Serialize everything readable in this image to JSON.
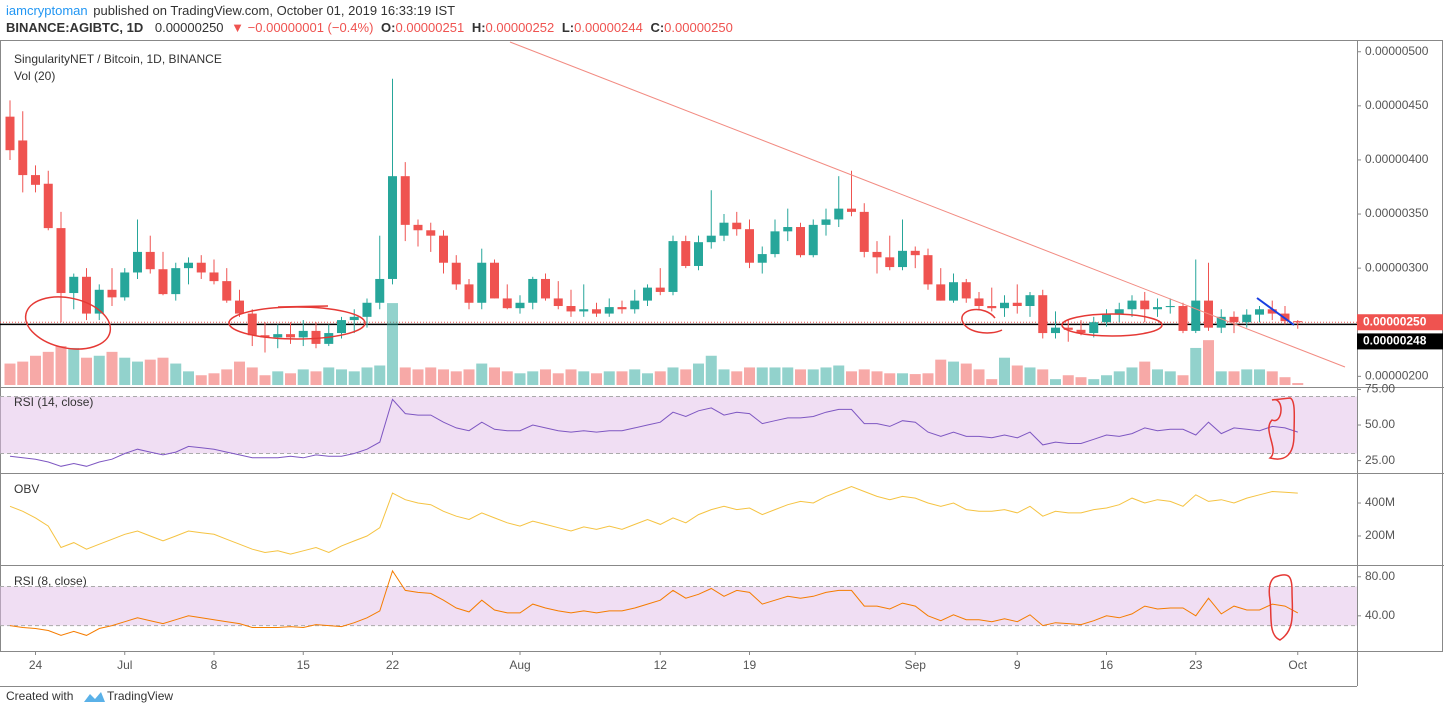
{
  "header": {
    "author": "iamcryptoman",
    "published": "published on TradingView.com, October 01, 2019 16:33:19 IST",
    "symbol": "BINANCE:AGIBTC, 1D",
    "price": "0.00000250",
    "change": "▼ −0.00000001 (−0.4%)",
    "o_label": "O:",
    "o": "0.00000251",
    "h_label": "H:",
    "h": "0.00000252",
    "l_label": "L:",
    "l": "0.00000244",
    "c_label": "C:",
    "c": "0.00000250"
  },
  "footer": {
    "created": "Created with",
    "brand": "TradingView"
  },
  "chart_data": [
    {
      "type": "candlestick",
      "title": "SingularityNET / Bitcoin, 1D, BINANCE",
      "up_color": "#26a69a",
      "down_color": "#ef5350",
      "categories": [
        null,
        null,
        "24",
        null,
        null,
        null,
        null,
        null,
        null,
        "Jul",
        null,
        null,
        null,
        null,
        null,
        null,
        "8",
        null,
        null,
        null,
        null,
        null,
        null,
        "15",
        null,
        null,
        null,
        null,
        null,
        null,
        "22",
        null,
        null,
        null,
        null,
        null,
        null,
        null,
        null,
        null,
        "Aug",
        null,
        null,
        null,
        null,
        null,
        null,
        null,
        null,
        null,
        null,
        "12",
        null,
        null,
        null,
        null,
        null,
        null,
        "19",
        null,
        null,
        null,
        null,
        null,
        null,
        null,
        null,
        null,
        null,
        null,
        null,
        "Sep",
        null,
        null,
        null,
        null,
        null,
        null,
        null,
        "9",
        null,
        null,
        null,
        null,
        null,
        null,
        "16",
        null,
        null,
        null,
        null,
        null,
        null,
        "23",
        null,
        null,
        null,
        null,
        null,
        null,
        null,
        "Oct"
      ],
      "open": [
        4.4e-06,
        4.18e-06,
        3.86e-06,
        3.78e-06,
        3.37e-06,
        2.77e-06,
        2.92e-06,
        2.58e-06,
        2.8e-06,
        2.73e-06,
        2.96e-06,
        3.15e-06,
        2.99e-06,
        2.76e-06,
        3e-06,
        3.05e-06,
        2.96e-06,
        2.88e-06,
        2.7e-06,
        2.58e-06,
        2.38e-06,
        2.36e-06,
        2.39e-06,
        2.36e-06,
        2.42e-06,
        2.3e-06,
        2.4e-06,
        2.52e-06,
        2.55e-06,
        2.68e-06,
        2.9e-06,
        3.85e-06,
        3.4e-06,
        3.35e-06,
        3.3e-06,
        3.05e-06,
        2.85e-06,
        2.68e-06,
        3.05e-06,
        2.72e-06,
        2.63e-06,
        2.68e-06,
        2.9e-06,
        2.72e-06,
        2.65e-06,
        2.6e-06,
        2.62e-06,
        2.58e-06,
        2.64e-06,
        2.62e-06,
        2.7e-06,
        2.82e-06,
        2.78e-06,
        3.25e-06,
        3.02e-06,
        3.24e-06,
        3.3e-06,
        3.42e-06,
        3.36e-06,
        3.05e-06,
        3.13e-06,
        3.34e-06,
        3.38e-06,
        3.12e-06,
        3.4e-06,
        3.45e-06,
        3.55e-06,
        3.52e-06,
        3.15e-06,
        3.1e-06,
        3.01e-06,
        3.16e-06,
        3.12e-06,
        2.85e-06,
        2.7e-06,
        2.87e-06,
        2.72e-06,
        2.65e-06,
        2.63e-06,
        2.68e-06,
        2.65e-06,
        2.75e-06,
        2.4e-06,
        2.45e-06,
        2.43e-06,
        2.4e-06,
        2.5e-06,
        2.58e-06,
        2.62e-06,
        2.7e-06,
        2.62e-06,
        2.64e-06,
        2.65e-06,
        2.42e-06,
        2.7e-06,
        2.45e-06,
        2.55e-06,
        2.5e-06,
        2.57e-06,
        2.62e-06,
        2.58e-06,
        2.51e-06
      ],
      "high": [
        4.55e-06,
        4.45e-06,
        3.95e-06,
        3.9e-06,
        3.52e-06,
        2.95e-06,
        3e-06,
        2.85e-06,
        3e-06,
        3e-06,
        3.45e-06,
        3.3e-06,
        3.15e-06,
        3.05e-06,
        3.1e-06,
        3.12e-06,
        3.08e-06,
        3e-06,
        2.8e-06,
        2.62e-06,
        2.5e-06,
        2.48e-06,
        2.5e-06,
        2.52e-06,
        2.5e-06,
        2.48e-06,
        2.55e-06,
        2.62e-06,
        2.72e-06,
        3.3e-06,
        4.75e-06,
        3.98e-06,
        3.45e-06,
        3.42e-06,
        3.35e-06,
        3.12e-06,
        2.9e-06,
        3.18e-06,
        3.08e-06,
        2.85e-06,
        2.75e-06,
        2.92e-06,
        2.95e-06,
        2.88e-06,
        2.8e-06,
        2.85e-06,
        2.68e-06,
        2.72e-06,
        2.7e-06,
        2.8e-06,
        2.85e-06,
        3e-06,
        3.3e-06,
        3.3e-06,
        3.3e-06,
        3.72e-06,
        3.5e-06,
        3.52e-06,
        3.45e-06,
        3.2e-06,
        3.45e-06,
        3.55e-06,
        3.42e-06,
        3.45e-06,
        3.55e-06,
        3.85e-06,
        3.9e-06,
        3.6e-06,
        3.25e-06,
        3.3e-06,
        3.45e-06,
        3.2e-06,
        3.18e-06,
        3e-06,
        2.95e-06,
        2.9e-06,
        2.78e-06,
        2.82e-06,
        2.75e-06,
        2.85e-06,
        2.78e-06,
        2.8e-06,
        2.6e-06,
        2.52e-06,
        2.52e-06,
        2.55e-06,
        2.62e-06,
        2.68e-06,
        2.75e-06,
        2.78e-06,
        2.72e-06,
        2.72e-06,
        2.68e-06,
        3.08e-06,
        3.05e-06,
        2.62e-06,
        2.6e-06,
        2.62e-06,
        2.65e-06,
        2.7e-06,
        2.65e-06,
        2.52e-06
      ],
      "low": [
        4e-06,
        3.7e-06,
        3.7e-06,
        3.35e-06,
        2.5e-06,
        2.62e-06,
        2.52e-06,
        2.52e-06,
        2.65e-06,
        2.7e-06,
        2.9e-06,
        2.95e-06,
        2.75e-06,
        2.7e-06,
        2.85e-06,
        2.9e-06,
        2.85e-06,
        2.68e-06,
        2.55e-06,
        2.28e-06,
        2.22e-06,
        2.26e-06,
        2.3e-06,
        2.28e-06,
        2.26e-06,
        2.28e-06,
        2.35e-06,
        2.4e-06,
        2.45e-06,
        2.62e-06,
        2.85e-06,
        3.25e-06,
        3.2e-06,
        3.15e-06,
        2.95e-06,
        2.8e-06,
        2.62e-06,
        2.62e-06,
        2.72e-06,
        2.62e-06,
        2.58e-06,
        2.62e-06,
        2.7e-06,
        2.62e-06,
        2.55e-06,
        2.55e-06,
        2.55e-06,
        2.55e-06,
        2.58e-06,
        2.58e-06,
        2.65e-06,
        2.75e-06,
        2.75e-06,
        3e-06,
        2.98e-06,
        3.18e-06,
        3.25e-06,
        3.3e-06,
        3e-06,
        2.95e-06,
        3.1e-06,
        3.25e-06,
        3.1e-06,
        3.1e-06,
        3.3e-06,
        3.38e-06,
        3.48e-06,
        3.1e-06,
        2.95e-06,
        2.98e-06,
        2.98e-06,
        3e-06,
        2.8e-06,
        2.7e-06,
        2.68e-06,
        2.68e-06,
        2.62e-06,
        2.6e-06,
        2.55e-06,
        2.58e-06,
        2.55e-06,
        2.35e-06,
        2.35e-06,
        2.32e-06,
        2.38e-06,
        2.36e-06,
        2.46e-06,
        2.5e-06,
        2.55e-06,
        2.5e-06,
        2.55e-06,
        2.58e-06,
        2.4e-06,
        2.4e-06,
        2.42e-06,
        2.4e-06,
        2.4e-06,
        2.45e-06,
        2.5e-06,
        2.52e-06,
        2.48e-06,
        2.44e-06
      ],
      "close": [
        4.09e-06,
        3.86e-06,
        3.77e-06,
        3.37e-06,
        2.77e-06,
        2.92e-06,
        2.58e-06,
        2.8e-06,
        2.73e-06,
        2.96e-06,
        3.15e-06,
        2.99e-06,
        2.76e-06,
        3e-06,
        3.05e-06,
        2.96e-06,
        2.88e-06,
        2.7e-06,
        2.58e-06,
        2.38e-06,
        2.36e-06,
        2.39e-06,
        2.36e-06,
        2.42e-06,
        2.3e-06,
        2.4e-06,
        2.52e-06,
        2.55e-06,
        2.68e-06,
        2.9e-06,
        3.85e-06,
        3.4e-06,
        3.35e-06,
        3.3e-06,
        3.05e-06,
        2.85e-06,
        2.68e-06,
        3.05e-06,
        2.72e-06,
        2.63e-06,
        2.68e-06,
        2.9e-06,
        2.72e-06,
        2.65e-06,
        2.6e-06,
        2.62e-06,
        2.58e-06,
        2.64e-06,
        2.62e-06,
        2.7e-06,
        2.82e-06,
        2.78e-06,
        3.25e-06,
        3.02e-06,
        3.24e-06,
        3.3e-06,
        3.42e-06,
        3.36e-06,
        3.05e-06,
        3.13e-06,
        3.34e-06,
        3.38e-06,
        3.12e-06,
        3.4e-06,
        3.45e-06,
        3.55e-06,
        3.52e-06,
        3.15e-06,
        3.1e-06,
        3.01e-06,
        3.16e-06,
        3.12e-06,
        2.85e-06,
        2.7e-06,
        2.87e-06,
        2.72e-06,
        2.65e-06,
        2.63e-06,
        2.68e-06,
        2.65e-06,
        2.75e-06,
        2.4e-06,
        2.45e-06,
        2.43e-06,
        2.4e-06,
        2.5e-06,
        2.58e-06,
        2.62e-06,
        2.7e-06,
        2.62e-06,
        2.64e-06,
        2.65e-06,
        2.42e-06,
        2.7e-06,
        2.45e-06,
        2.55e-06,
        2.5e-06,
        2.57e-06,
        2.62e-06,
        2.58e-06,
        2.51e-06,
        2.5e-06
      ],
      "ylim": [
        1.92e-06,
        5.09e-06
      ],
      "yticks": [
        {
          "value": 5e-06,
          "label": "0.00000500"
        },
        {
          "value": 4.5e-06,
          "label": "0.00000450"
        },
        {
          "value": 4e-06,
          "label": "0.00000400"
        },
        {
          "value": 3.5e-06,
          "label": "0.00000350"
        },
        {
          "value": 3e-06,
          "label": "0.00000300"
        },
        {
          "value": 2e-06,
          "label": "0.00000200"
        }
      ],
      "price_labels": [
        {
          "value": 2.5e-06,
          "label": "0.00000250",
          "color": "#ef5350"
        },
        {
          "value": 2.48e-06,
          "label": "0.00000248",
          "color": "#000000"
        }
      ]
    },
    {
      "type": "bar",
      "title": "Vol (20)",
      "ylim": [
        0,
        300000000
      ],
      "values": [
        55000000,
        60000000,
        75000000,
        85000000,
        100000000,
        95000000,
        70000000,
        75000000,
        85000000,
        70000000,
        60000000,
        65000000,
        70000000,
        55000000,
        35000000,
        25000000,
        30000000,
        40000000,
        60000000,
        45000000,
        25000000,
        35000000,
        30000000,
        40000000,
        35000000,
        45000000,
        40000000,
        35000000,
        45000000,
        50000000,
        210000000,
        45000000,
        40000000,
        45000000,
        40000000,
        35000000,
        40000000,
        55000000,
        45000000,
        35000000,
        30000000,
        35000000,
        40000000,
        30000000,
        40000000,
        35000000,
        30000000,
        35000000,
        35000000,
        40000000,
        30000000,
        35000000,
        45000000,
        40000000,
        55000000,
        75000000,
        40000000,
        35000000,
        45000000,
        45000000,
        45000000,
        45000000,
        40000000,
        40000000,
        45000000,
        50000000,
        35000000,
        40000000,
        35000000,
        30000000,
        30000000,
        28000000,
        30000000,
        65000000,
        60000000,
        55000000,
        40000000,
        15000000,
        70000000,
        50000000,
        45000000,
        40000000,
        15000000,
        25000000,
        20000000,
        15000000,
        25000000,
        35000000,
        45000000,
        60000000,
        40000000,
        35000000,
        25000000,
        95000000,
        115000000,
        35000000,
        35000000,
        40000000,
        40000000,
        35000000,
        20000000,
        5000000
      ]
    },
    {
      "type": "line",
      "title": "RSI (14, close)",
      "color": "#7e57c2",
      "band_color": "#e1bee7",
      "bands": [
        30,
        70
      ],
      "ylim": [
        17,
        76
      ],
      "yticks": [
        {
          "value": 75,
          "label": "75.00"
        },
        {
          "value": 50,
          "label": "50.00"
        },
        {
          "value": 25,
          "label": "25.00"
        }
      ],
      "values": [
        28,
        27,
        26,
        24,
        21,
        23,
        21,
        24,
        26,
        30,
        33,
        31,
        29,
        31,
        35,
        34,
        33,
        31,
        29,
        27,
        27,
        27,
        28,
        27,
        29,
        28,
        28,
        30,
        33,
        38,
        68,
        58,
        57,
        57,
        52,
        48,
        46,
        52,
        47,
        46,
        46,
        50,
        48,
        46,
        45,
        46,
        45,
        46,
        46,
        48,
        50,
        52,
        59,
        56,
        60,
        62,
        57,
        59,
        58,
        51,
        53,
        55,
        55,
        56,
        59,
        61,
        61,
        51,
        51,
        49,
        53,
        52,
        45,
        42,
        45,
        42,
        42,
        41,
        43,
        41,
        45,
        36,
        38,
        37,
        37,
        40,
        43,
        42,
        44,
        48,
        46,
        47,
        47,
        43,
        52,
        44,
        48,
        47,
        46,
        49,
        48,
        45
      ]
    },
    {
      "type": "line",
      "title": "OBV",
      "color": "#f5c342",
      "ylim": [
        30000000,
        570000000
      ],
      "yticks": [
        {
          "value": 400000000,
          "label": "400M"
        },
        {
          "value": 200000000,
          "label": "200M"
        }
      ],
      "values": [
        380000000,
        350000000,
        310000000,
        260000000,
        130000000,
        160000000,
        120000000,
        150000000,
        180000000,
        210000000,
        230000000,
        200000000,
        170000000,
        200000000,
        230000000,
        220000000,
        210000000,
        180000000,
        150000000,
        120000000,
        100000000,
        110000000,
        90000000,
        110000000,
        130000000,
        100000000,
        140000000,
        170000000,
        200000000,
        250000000,
        460000000,
        420000000,
        400000000,
        390000000,
        350000000,
        320000000,
        300000000,
        340000000,
        310000000,
        280000000,
        260000000,
        290000000,
        270000000,
        250000000,
        230000000,
        255000000,
        240000000,
        260000000,
        240000000,
        270000000,
        300000000,
        270000000,
        310000000,
        280000000,
        330000000,
        360000000,
        380000000,
        360000000,
        370000000,
        330000000,
        360000000,
        390000000,
        410000000,
        400000000,
        440000000,
        470000000,
        500000000,
        470000000,
        440000000,
        420000000,
        440000000,
        430000000,
        400000000,
        380000000,
        400000000,
        360000000,
        350000000,
        350000000,
        360000000,
        340000000,
        380000000,
        320000000,
        350000000,
        340000000,
        340000000,
        360000000,
        370000000,
        390000000,
        430000000,
        400000000,
        420000000,
        410000000,
        380000000,
        450000000,
        410000000,
        420000000,
        400000000,
        430000000,
        450000000,
        470000000,
        465000000,
        460000000
      ]
    },
    {
      "type": "line",
      "title": "RSI (8, close)",
      "color": "#f57c00",
      "band_color": "#e1bee7",
      "bands": [
        30,
        70
      ],
      "ylim": [
        5,
        90
      ],
      "yticks": [
        {
          "value": 80,
          "label": "80.00"
        },
        {
          "value": 40,
          "label": "40.00"
        }
      ],
      "values": [
        30,
        28,
        27,
        25,
        20,
        24,
        20,
        27,
        30,
        34,
        38,
        35,
        32,
        36,
        40,
        38,
        36,
        34,
        32,
        28,
        28,
        28,
        29,
        28,
        31,
        30,
        29,
        33,
        38,
        45,
        86,
        66,
        64,
        63,
        56,
        48,
        44,
        56,
        46,
        43,
        43,
        52,
        48,
        45,
        43,
        45,
        43,
        45,
        45,
        48,
        52,
        56,
        66,
        58,
        62,
        68,
        60,
        66,
        64,
        52,
        56,
        60,
        58,
        60,
        64,
        66,
        66,
        50,
        50,
        47,
        53,
        50,
        40,
        35,
        41,
        36,
        36,
        34,
        37,
        34,
        41,
        30,
        33,
        32,
        31,
        35,
        40,
        38,
        42,
        50,
        47,
        48,
        48,
        40,
        58,
        42,
        50,
        46,
        46,
        52,
        50,
        43
      ]
    }
  ]
}
